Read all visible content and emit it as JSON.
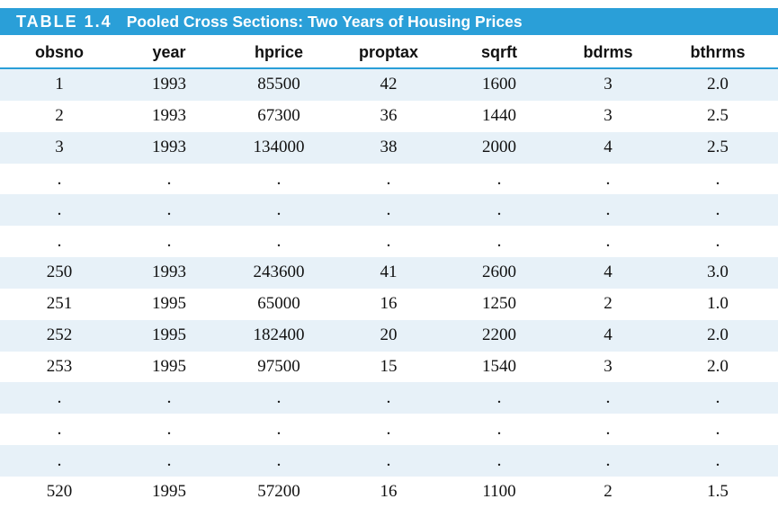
{
  "table": {
    "label": "TABLE 1.4",
    "title": "Pooled Cross Sections: Two Years of Housing Prices",
    "columns": [
      "obsno",
      "year",
      "hprice",
      "proptax",
      "sqrft",
      "bdrms",
      "bthrms"
    ],
    "rows": [
      [
        "1",
        "1993",
        "85500",
        "42",
        "1600",
        "3",
        "2.0"
      ],
      [
        "2",
        "1993",
        "67300",
        "36",
        "1440",
        "3",
        "2.5"
      ],
      [
        "3",
        "1993",
        "134000",
        "38",
        "2000",
        "4",
        "2.5"
      ],
      [
        ".",
        ".",
        ".",
        ".",
        ".",
        ".",
        "."
      ],
      [
        ".",
        ".",
        ".",
        ".",
        ".",
        ".",
        "."
      ],
      [
        ".",
        ".",
        ".",
        ".",
        ".",
        ".",
        "."
      ],
      [
        "250",
        "1993",
        "243600",
        "41",
        "2600",
        "4",
        "3.0"
      ],
      [
        "251",
        "1995",
        "65000",
        "16",
        "1250",
        "2",
        "1.0"
      ],
      [
        "252",
        "1995",
        "182400",
        "20",
        "2200",
        "4",
        "2.0"
      ],
      [
        "253",
        "1995",
        "97500",
        "15",
        "1540",
        "3",
        "2.0"
      ],
      [
        ".",
        ".",
        ".",
        ".",
        ".",
        ".",
        "."
      ],
      [
        ".",
        ".",
        ".",
        ".",
        ".",
        ".",
        "."
      ],
      [
        ".",
        ".",
        ".",
        ".",
        ".",
        ".",
        "."
      ],
      [
        "520",
        "1995",
        "57200",
        "16",
        "1100",
        "2",
        "1.5"
      ]
    ]
  },
  "colors": {
    "title_bar": "#2a9fd8",
    "shaded_row": "#e7f1f8"
  }
}
